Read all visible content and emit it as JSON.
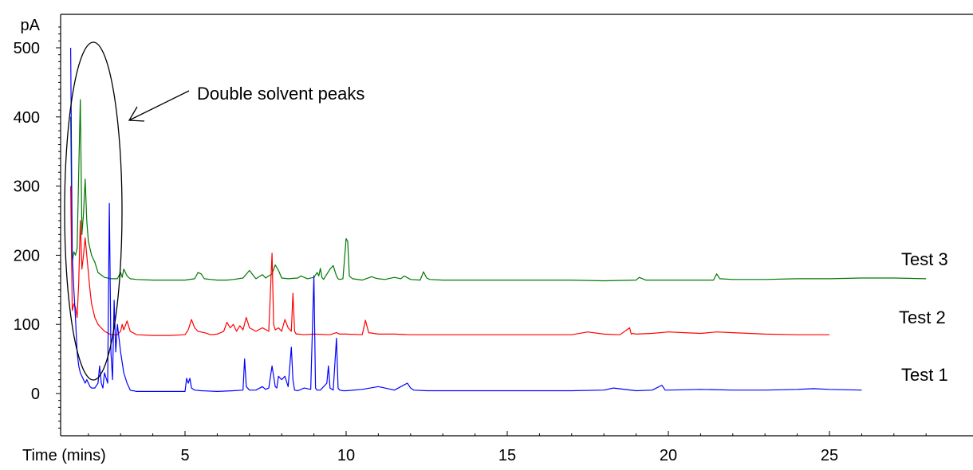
{
  "chart_data": {
    "type": "line",
    "ylabel": "pA",
    "xlabel": "Time (mins)",
    "xlim": [
      1.3,
      28.0
    ],
    "ylim": [
      -60,
      550
    ],
    "x_ticks": [
      5,
      10,
      15,
      20,
      25
    ],
    "y_ticks": [
      0,
      100,
      200,
      300,
      400,
      500
    ],
    "annotation": "Double solvent peaks",
    "series": [
      {
        "name": "Test 3",
        "color": "#007800",
        "x": [
          1.45,
          1.5,
          1.55,
          1.6,
          1.65,
          1.7,
          1.75,
          1.8,
          1.85,
          1.9,
          1.95,
          2.0,
          2.05,
          2.1,
          2.2,
          2.3,
          2.5,
          2.7,
          2.9,
          3.0,
          3.05,
          3.1,
          3.2,
          3.3,
          3.5,
          4.0,
          4.5,
          5.0,
          5.3,
          5.4,
          5.5,
          5.6,
          5.8,
          6.0,
          6.3,
          6.5,
          6.8,
          7.0,
          7.1,
          7.2,
          7.4,
          7.5,
          7.7,
          7.8,
          7.9,
          8.0,
          8.2,
          8.5,
          8.6,
          8.8,
          9.0,
          9.1,
          9.15,
          9.2,
          9.25,
          9.3,
          9.5,
          9.6,
          9.7,
          9.75,
          9.8,
          9.9,
          10.0,
          10.05,
          10.1,
          10.2,
          10.5,
          10.8,
          10.9,
          11.0,
          11.2,
          11.5,
          11.7,
          11.8,
          12.0,
          12.3,
          12.4,
          12.5,
          12.6,
          13.0,
          14.0,
          15.0,
          16.0,
          17.0,
          18.0,
          19.0,
          19.1,
          19.3,
          20.0,
          21.0,
          21.4,
          21.5,
          21.6,
          22.0,
          23.0,
          24.0,
          25.0,
          26.0,
          27.0,
          28.0
        ],
        "y": [
          400,
          190,
          205,
          200,
          210,
          320,
          425,
          230,
          260,
          310,
          250,
          220,
          210,
          200,
          190,
          175,
          168,
          166,
          166,
          175,
          168,
          180,
          170,
          166,
          165,
          164,
          164,
          164,
          166,
          175,
          173,
          166,
          165,
          164,
          164,
          165,
          167,
          178,
          172,
          166,
          172,
          167,
          173,
          186,
          178,
          167,
          166,
          167,
          170,
          166,
          168,
          175,
          170,
          181,
          168,
          165,
          180,
          185,
          170,
          166,
          165,
          166,
          224,
          220,
          170,
          166,
          164,
          169,
          167,
          166,
          165,
          168,
          166,
          170,
          165,
          164,
          176,
          167,
          165,
          164,
          164,
          164,
          164,
          164,
          163,
          164,
          168,
          164,
          164,
          164,
          164,
          173,
          166,
          165,
          165,
          166,
          166,
          167,
          167,
          166
        ]
      },
      {
        "name": "Test 2",
        "color": "#ff0000",
        "x": [
          1.45,
          1.5,
          1.55,
          1.6,
          1.65,
          1.7,
          1.75,
          1.8,
          1.85,
          1.9,
          1.95,
          2.0,
          2.05,
          2.1,
          2.2,
          2.3,
          2.5,
          2.7,
          2.9,
          3.0,
          3.05,
          3.1,
          3.2,
          3.3,
          3.5,
          4.0,
          4.5,
          5.0,
          5.1,
          5.2,
          5.3,
          5.4,
          5.6,
          5.8,
          6.0,
          6.2,
          6.3,
          6.4,
          6.5,
          6.6,
          6.7,
          6.8,
          6.9,
          7.0,
          7.2,
          7.4,
          7.6,
          7.7,
          7.75,
          7.8,
          7.9,
          8.0,
          8.1,
          8.2,
          8.3,
          8.35,
          8.4,
          8.45,
          8.5,
          8.7,
          9.0,
          9.5,
          9.7,
          9.8,
          10.0,
          10.5,
          10.6,
          10.7,
          11.0,
          11.5,
          12.0,
          12.5,
          13.0,
          13.5,
          14.0,
          15.0,
          16.0,
          17.0,
          17.5,
          18.0,
          18.5,
          18.8,
          18.85,
          18.9,
          19.0,
          19.5,
          20.0,
          20.5,
          21.0,
          21.5,
          22.0,
          22.5,
          23.0,
          24.0,
          25.0
        ],
        "y": [
          300,
          120,
          130,
          125,
          110,
          160,
          250,
          180,
          200,
          225,
          200,
          175,
          150,
          130,
          110,
          100,
          90,
          85,
          85,
          90,
          100,
          92,
          105,
          90,
          85,
          84,
          84,
          85,
          92,
          107,
          95,
          90,
          88,
          85,
          86,
          90,
          103,
          95,
          100,
          90,
          98,
          92,
          110,
          95,
          90,
          95,
          90,
          203,
          100,
          92,
          95,
          90,
          107,
          95,
          90,
          145,
          90,
          86,
          86,
          85,
          86,
          85,
          88,
          86,
          86,
          85,
          106,
          88,
          86,
          86,
          85,
          85,
          85,
          85,
          85,
          85,
          85,
          85,
          89,
          86,
          85,
          95,
          86,
          87,
          86,
          87,
          89,
          88,
          87,
          89,
          88,
          87,
          86,
          85,
          85
        ]
      },
      {
        "name": "Test 1",
        "color": "#0000ff",
        "x": [
          1.45,
          1.5,
          1.55,
          1.6,
          1.65,
          1.7,
          1.75,
          1.8,
          1.85,
          1.9,
          1.95,
          2.0,
          2.05,
          2.1,
          2.2,
          2.3,
          2.35,
          2.4,
          2.45,
          2.5,
          2.6,
          2.65,
          2.7,
          2.75,
          2.8,
          2.85,
          2.9,
          3.0,
          3.1,
          3.2,
          3.3,
          3.35,
          3.4,
          3.5,
          4.0,
          4.5,
          5.0,
          5.05,
          5.1,
          5.15,
          5.2,
          5.3,
          5.5,
          6.0,
          6.5,
          6.8,
          6.85,
          6.9,
          7.0,
          7.2,
          7.4,
          7.5,
          7.6,
          7.7,
          7.8,
          7.85,
          7.9,
          8.0,
          8.1,
          8.2,
          8.3,
          8.35,
          8.4,
          8.5,
          8.7,
          8.9,
          9.0,
          9.05,
          9.1,
          9.2,
          9.4,
          9.45,
          9.5,
          9.6,
          9.7,
          9.75,
          9.8,
          9.9,
          10.0,
          10.5,
          11.0,
          11.5,
          11.9,
          12.0,
          12.1,
          12.5,
          13.0,
          14.0,
          15.0,
          16.0,
          17.0,
          18.0,
          18.3,
          19.0,
          19.5,
          19.8,
          19.9,
          20.0,
          21.0,
          22.0,
          23.0,
          24.0,
          24.5,
          25.0,
          26.0
        ],
        "y": [
          500,
          200,
          150,
          110,
          60,
          40,
          30,
          25,
          20,
          15,
          20,
          15,
          10,
          8,
          8,
          15,
          40,
          15,
          8,
          30,
          15,
          275,
          60,
          20,
          135,
          60,
          100,
          60,
          30,
          15,
          5,
          4,
          4,
          3,
          3,
          3,
          3,
          22,
          15,
          22,
          8,
          5,
          4,
          3,
          4,
          5,
          50,
          10,
          5,
          5,
          10,
          6,
          8,
          40,
          10,
          8,
          25,
          20,
          25,
          10,
          67,
          20,
          5,
          4,
          8,
          6,
          170,
          8,
          5,
          5,
          15,
          40,
          8,
          5,
          80,
          8,
          5,
          4,
          4,
          6,
          10,
          5,
          15,
          8,
          5,
          4,
          4,
          4,
          4,
          4,
          4,
          5,
          8,
          4,
          5,
          12,
          5,
          5,
          6,
          5,
          5,
          6,
          7,
          6,
          5
        ]
      }
    ]
  }
}
